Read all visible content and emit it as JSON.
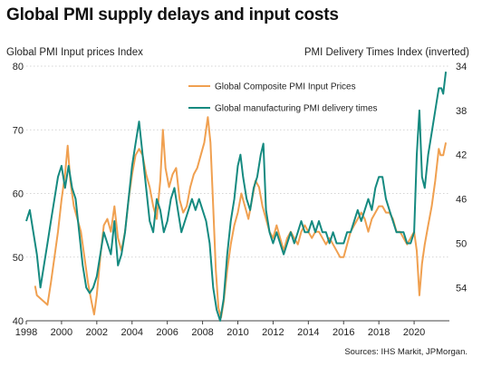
{
  "header": {
    "title": "Global PMI supply delays and input costs",
    "left_axis_title": "Global PMI Input prices Index",
    "right_axis_title": "PMI Delivery Times Index (inverted)",
    "source": "Sources: IHS Markit, JPMorgan."
  },
  "colors": {
    "input_prices": "#f0a050",
    "delivery_times": "#158a80",
    "grid": "#c8c8c8"
  },
  "chart_data": {
    "type": "line",
    "title": "Global PMI supply delays and input costs",
    "ylabel_left": "Global PMI Input prices Index",
    "ylabel_right": "PMI Delivery Times Index (inverted)",
    "x_range": [
      1998,
      2022
    ],
    "y_left_lim": [
      40,
      80
    ],
    "y_left_ticks": [
      40,
      50,
      60,
      70,
      80
    ],
    "y_right_lim": [
      57,
      34
    ],
    "y_right_ticks": [
      34,
      38,
      42,
      46,
      50,
      54
    ],
    "y_right_inverted": true,
    "x_ticks": [
      1998,
      2000,
      2002,
      2004,
      2006,
      2008,
      2010,
      2012,
      2014,
      2016,
      2018,
      2020
    ],
    "grid": true,
    "legend_position": "top-center",
    "series": [
      {
        "name": "Global Composite PMI Input Prices",
        "axis": "left",
        "points": [
          [
            1998.5,
            45.5
          ],
          [
            1998.6,
            44
          ],
          [
            1998.8,
            43.5
          ],
          [
            1999.0,
            43
          ],
          [
            1999.2,
            42.5
          ],
          [
            1999.4,
            46
          ],
          [
            1999.6,
            50
          ],
          [
            1999.8,
            54
          ],
          [
            2000.0,
            59
          ],
          [
            2000.2,
            63
          ],
          [
            2000.35,
            67.5
          ],
          [
            2000.5,
            62
          ],
          [
            2000.7,
            58
          ],
          [
            2000.9,
            56
          ],
          [
            2001.1,
            54
          ],
          [
            2001.3,
            50
          ],
          [
            2001.5,
            46
          ],
          [
            2001.7,
            43
          ],
          [
            2001.85,
            41
          ],
          [
            2002.0,
            44
          ],
          [
            2002.2,
            50
          ],
          [
            2002.4,
            55
          ],
          [
            2002.6,
            56
          ],
          [
            2002.8,
            54
          ],
          [
            2003.0,
            58
          ],
          [
            2003.2,
            53
          ],
          [
            2003.4,
            51
          ],
          [
            2003.6,
            54
          ],
          [
            2003.8,
            59
          ],
          [
            2004.0,
            63
          ],
          [
            2004.2,
            66
          ],
          [
            2004.4,
            67
          ],
          [
            2004.6,
            66
          ],
          [
            2004.8,
            63
          ],
          [
            2005.0,
            61
          ],
          [
            2005.2,
            58
          ],
          [
            2005.4,
            56
          ],
          [
            2005.6,
            62
          ],
          [
            2005.75,
            70
          ],
          [
            2005.9,
            64
          ],
          [
            2006.1,
            61
          ],
          [
            2006.3,
            63
          ],
          [
            2006.5,
            64
          ],
          [
            2006.7,
            59
          ],
          [
            2006.9,
            57
          ],
          [
            2007.1,
            58
          ],
          [
            2007.3,
            61
          ],
          [
            2007.5,
            63
          ],
          [
            2007.7,
            64
          ],
          [
            2007.9,
            66
          ],
          [
            2008.1,
            68
          ],
          [
            2008.3,
            72
          ],
          [
            2008.45,
            68
          ],
          [
            2008.6,
            58
          ],
          [
            2008.75,
            48
          ],
          [
            2008.9,
            42
          ],
          [
            2009.05,
            40.5
          ],
          [
            2009.2,
            43
          ],
          [
            2009.4,
            48
          ],
          [
            2009.6,
            52
          ],
          [
            2009.8,
            55
          ],
          [
            2010.0,
            57
          ],
          [
            2010.2,
            60
          ],
          [
            2010.4,
            58
          ],
          [
            2010.6,
            56
          ],
          [
            2010.8,
            59
          ],
          [
            2011.0,
            62
          ],
          [
            2011.2,
            61
          ],
          [
            2011.4,
            58
          ],
          [
            2011.6,
            56
          ],
          [
            2011.8,
            54
          ],
          [
            2012.0,
            53
          ],
          [
            2012.2,
            55
          ],
          [
            2012.4,
            53
          ],
          [
            2012.6,
            51
          ],
          [
            2012.8,
            53
          ],
          [
            2013.0,
            54
          ],
          [
            2013.2,
            53
          ],
          [
            2013.4,
            52
          ],
          [
            2013.6,
            54
          ],
          [
            2013.8,
            55
          ],
          [
            2014.0,
            54
          ],
          [
            2014.2,
            53
          ],
          [
            2014.4,
            54
          ],
          [
            2014.6,
            54
          ],
          [
            2014.8,
            53
          ],
          [
            2015.0,
            52
          ],
          [
            2015.2,
            53
          ],
          [
            2015.4,
            52
          ],
          [
            2015.6,
            51
          ],
          [
            2015.8,
            50
          ],
          [
            2016.0,
            50
          ],
          [
            2016.2,
            52
          ],
          [
            2016.4,
            54
          ],
          [
            2016.6,
            55
          ],
          [
            2016.8,
            56
          ],
          [
            2017.0,
            57
          ],
          [
            2017.2,
            56
          ],
          [
            2017.4,
            54
          ],
          [
            2017.6,
            56
          ],
          [
            2017.8,
            57
          ],
          [
            2018.0,
            58
          ],
          [
            2018.2,
            58
          ],
          [
            2018.4,
            57
          ],
          [
            2018.6,
            57
          ],
          [
            2018.8,
            56
          ],
          [
            2019.0,
            54
          ],
          [
            2019.2,
            54
          ],
          [
            2019.4,
            53
          ],
          [
            2019.6,
            52
          ],
          [
            2019.8,
            53
          ],
          [
            2020.0,
            54
          ],
          [
            2020.15,
            51
          ],
          [
            2020.3,
            44
          ],
          [
            2020.45,
            49
          ],
          [
            2020.6,
            52
          ],
          [
            2020.8,
            55
          ],
          [
            2021.0,
            58
          ],
          [
            2021.2,
            62
          ],
          [
            2021.4,
            67
          ],
          [
            2021.5,
            66
          ],
          [
            2021.65,
            66
          ],
          [
            2021.8,
            68
          ]
        ]
      },
      {
        "name": "Global manufacturing PMI delivery times",
        "axis": "right",
        "points": [
          [
            1998.0,
            48
          ],
          [
            1998.2,
            47
          ],
          [
            1998.4,
            49
          ],
          [
            1998.6,
            51
          ],
          [
            1998.8,
            54
          ],
          [
            1999.0,
            52
          ],
          [
            1999.2,
            50
          ],
          [
            1999.4,
            48
          ],
          [
            1999.6,
            46
          ],
          [
            1999.8,
            44
          ],
          [
            2000.0,
            43
          ],
          [
            2000.2,
            45
          ],
          [
            2000.4,
            43
          ],
          [
            2000.6,
            45
          ],
          [
            2000.8,
            46
          ],
          [
            2001.0,
            49
          ],
          [
            2001.2,
            52
          ],
          [
            2001.4,
            54
          ],
          [
            2001.6,
            54.5
          ],
          [
            2001.8,
            54
          ],
          [
            2002.0,
            53
          ],
          [
            2002.2,
            51
          ],
          [
            2002.4,
            49
          ],
          [
            2002.6,
            50
          ],
          [
            2002.8,
            51
          ],
          [
            2003.0,
            48
          ],
          [
            2003.2,
            52
          ],
          [
            2003.4,
            51
          ],
          [
            2003.6,
            49
          ],
          [
            2003.8,
            46
          ],
          [
            2004.0,
            43
          ],
          [
            2004.2,
            41
          ],
          [
            2004.4,
            39
          ],
          [
            2004.6,
            42
          ],
          [
            2004.8,
            45
          ],
          [
            2005.0,
            48
          ],
          [
            2005.2,
            49
          ],
          [
            2005.4,
            46
          ],
          [
            2005.6,
            47
          ],
          [
            2005.8,
            49
          ],
          [
            2006.0,
            48
          ],
          [
            2006.2,
            46
          ],
          [
            2006.4,
            45
          ],
          [
            2006.6,
            47
          ],
          [
            2006.8,
            49
          ],
          [
            2007.0,
            48
          ],
          [
            2007.2,
            47
          ],
          [
            2007.4,
            46
          ],
          [
            2007.6,
            47
          ],
          [
            2007.8,
            46
          ],
          [
            2008.0,
            47
          ],
          [
            2008.2,
            48
          ],
          [
            2008.4,
            50
          ],
          [
            2008.6,
            54
          ],
          [
            2008.8,
            56
          ],
          [
            2009.0,
            57
          ],
          [
            2009.2,
            55
          ],
          [
            2009.4,
            51
          ],
          [
            2009.6,
            48
          ],
          [
            2009.8,
            46
          ],
          [
            2010.0,
            43
          ],
          [
            2010.15,
            42
          ],
          [
            2010.3,
            44
          ],
          [
            2010.5,
            46
          ],
          [
            2010.7,
            47
          ],
          [
            2010.9,
            45
          ],
          [
            2011.1,
            44
          ],
          [
            2011.3,
            42
          ],
          [
            2011.45,
            41
          ],
          [
            2011.6,
            47
          ],
          [
            2011.8,
            49
          ],
          [
            2012.0,
            50
          ],
          [
            2012.2,
            49
          ],
          [
            2012.4,
            50
          ],
          [
            2012.6,
            51
          ],
          [
            2012.8,
            50
          ],
          [
            2013.0,
            49
          ],
          [
            2013.2,
            50
          ],
          [
            2013.4,
            49
          ],
          [
            2013.6,
            48
          ],
          [
            2013.8,
            49
          ],
          [
            2014.0,
            49
          ],
          [
            2014.2,
            48
          ],
          [
            2014.4,
            49
          ],
          [
            2014.6,
            48
          ],
          [
            2014.8,
            49
          ],
          [
            2015.0,
            49
          ],
          [
            2015.2,
            50
          ],
          [
            2015.4,
            49
          ],
          [
            2015.6,
            50
          ],
          [
            2015.8,
            50
          ],
          [
            2016.0,
            50
          ],
          [
            2016.2,
            49
          ],
          [
            2016.4,
            49
          ],
          [
            2016.6,
            48
          ],
          [
            2016.8,
            47
          ],
          [
            2017.0,
            48
          ],
          [
            2017.2,
            47
          ],
          [
            2017.4,
            46
          ],
          [
            2017.6,
            47
          ],
          [
            2017.8,
            45
          ],
          [
            2018.0,
            44
          ],
          [
            2018.2,
            44
          ],
          [
            2018.4,
            46
          ],
          [
            2018.6,
            47
          ],
          [
            2018.8,
            48
          ],
          [
            2019.0,
            49
          ],
          [
            2019.2,
            49
          ],
          [
            2019.4,
            49
          ],
          [
            2019.6,
            50
          ],
          [
            2019.8,
            50
          ],
          [
            2020.0,
            49
          ],
          [
            2020.15,
            42
          ],
          [
            2020.3,
            38
          ],
          [
            2020.45,
            44
          ],
          [
            2020.6,
            45
          ],
          [
            2020.8,
            42
          ],
          [
            2021.0,
            40
          ],
          [
            2021.2,
            38
          ],
          [
            2021.4,
            36
          ],
          [
            2021.55,
            36
          ],
          [
            2021.65,
            36.5
          ],
          [
            2021.8,
            34.5
          ]
        ]
      }
    ]
  }
}
